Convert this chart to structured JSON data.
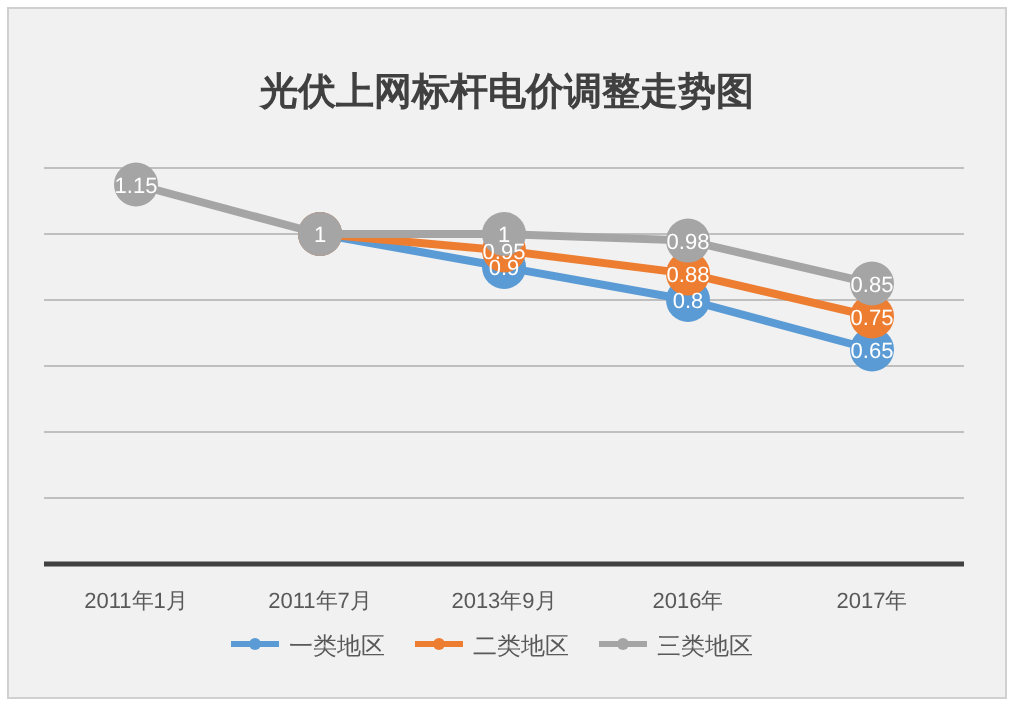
{
  "chart_data": {
    "type": "line",
    "title": "光伏上网标杆电价调整走势图",
    "categories": [
      "2011年1月",
      "2011年7月",
      "2013年9月",
      "2016年",
      "2017年"
    ],
    "series": [
      {
        "name": "一类地区",
        "color": "#5b9bd5",
        "values": [
          null,
          1,
          0.9,
          0.8,
          0.65
        ],
        "value_labels": [
          null,
          null,
          "0.9",
          "0.8",
          "0.65"
        ]
      },
      {
        "name": "二类地区",
        "color": "#ed7d31",
        "values": [
          null,
          1,
          0.95,
          0.88,
          0.75
        ],
        "value_labels": [
          null,
          null,
          "0.95",
          "0.88",
          "0.75"
        ]
      },
      {
        "name": "三类地区",
        "color": "#a5a5a5",
        "values": [
          1.15,
          1,
          1,
          0.98,
          0.85
        ],
        "value_labels": [
          "1.15",
          "1",
          "1",
          "0.98",
          "0.85"
        ]
      }
    ],
    "ylim": [
      0,
      1.2
    ],
    "yticks": [
      {
        "value": 0,
        "label": null
      },
      {
        "value": 0.2,
        "label": null
      },
      {
        "value": 0.4,
        "label": null
      },
      {
        "value": 0.6,
        "label": null
      },
      {
        "value": 0.8,
        "label": null
      },
      {
        "value": 1,
        "label": null
      },
      {
        "value": 1.2,
        "label": null
      }
    ],
    "grid": "y",
    "legend": "bottom",
    "marker": "circle",
    "line_style": "solid"
  }
}
